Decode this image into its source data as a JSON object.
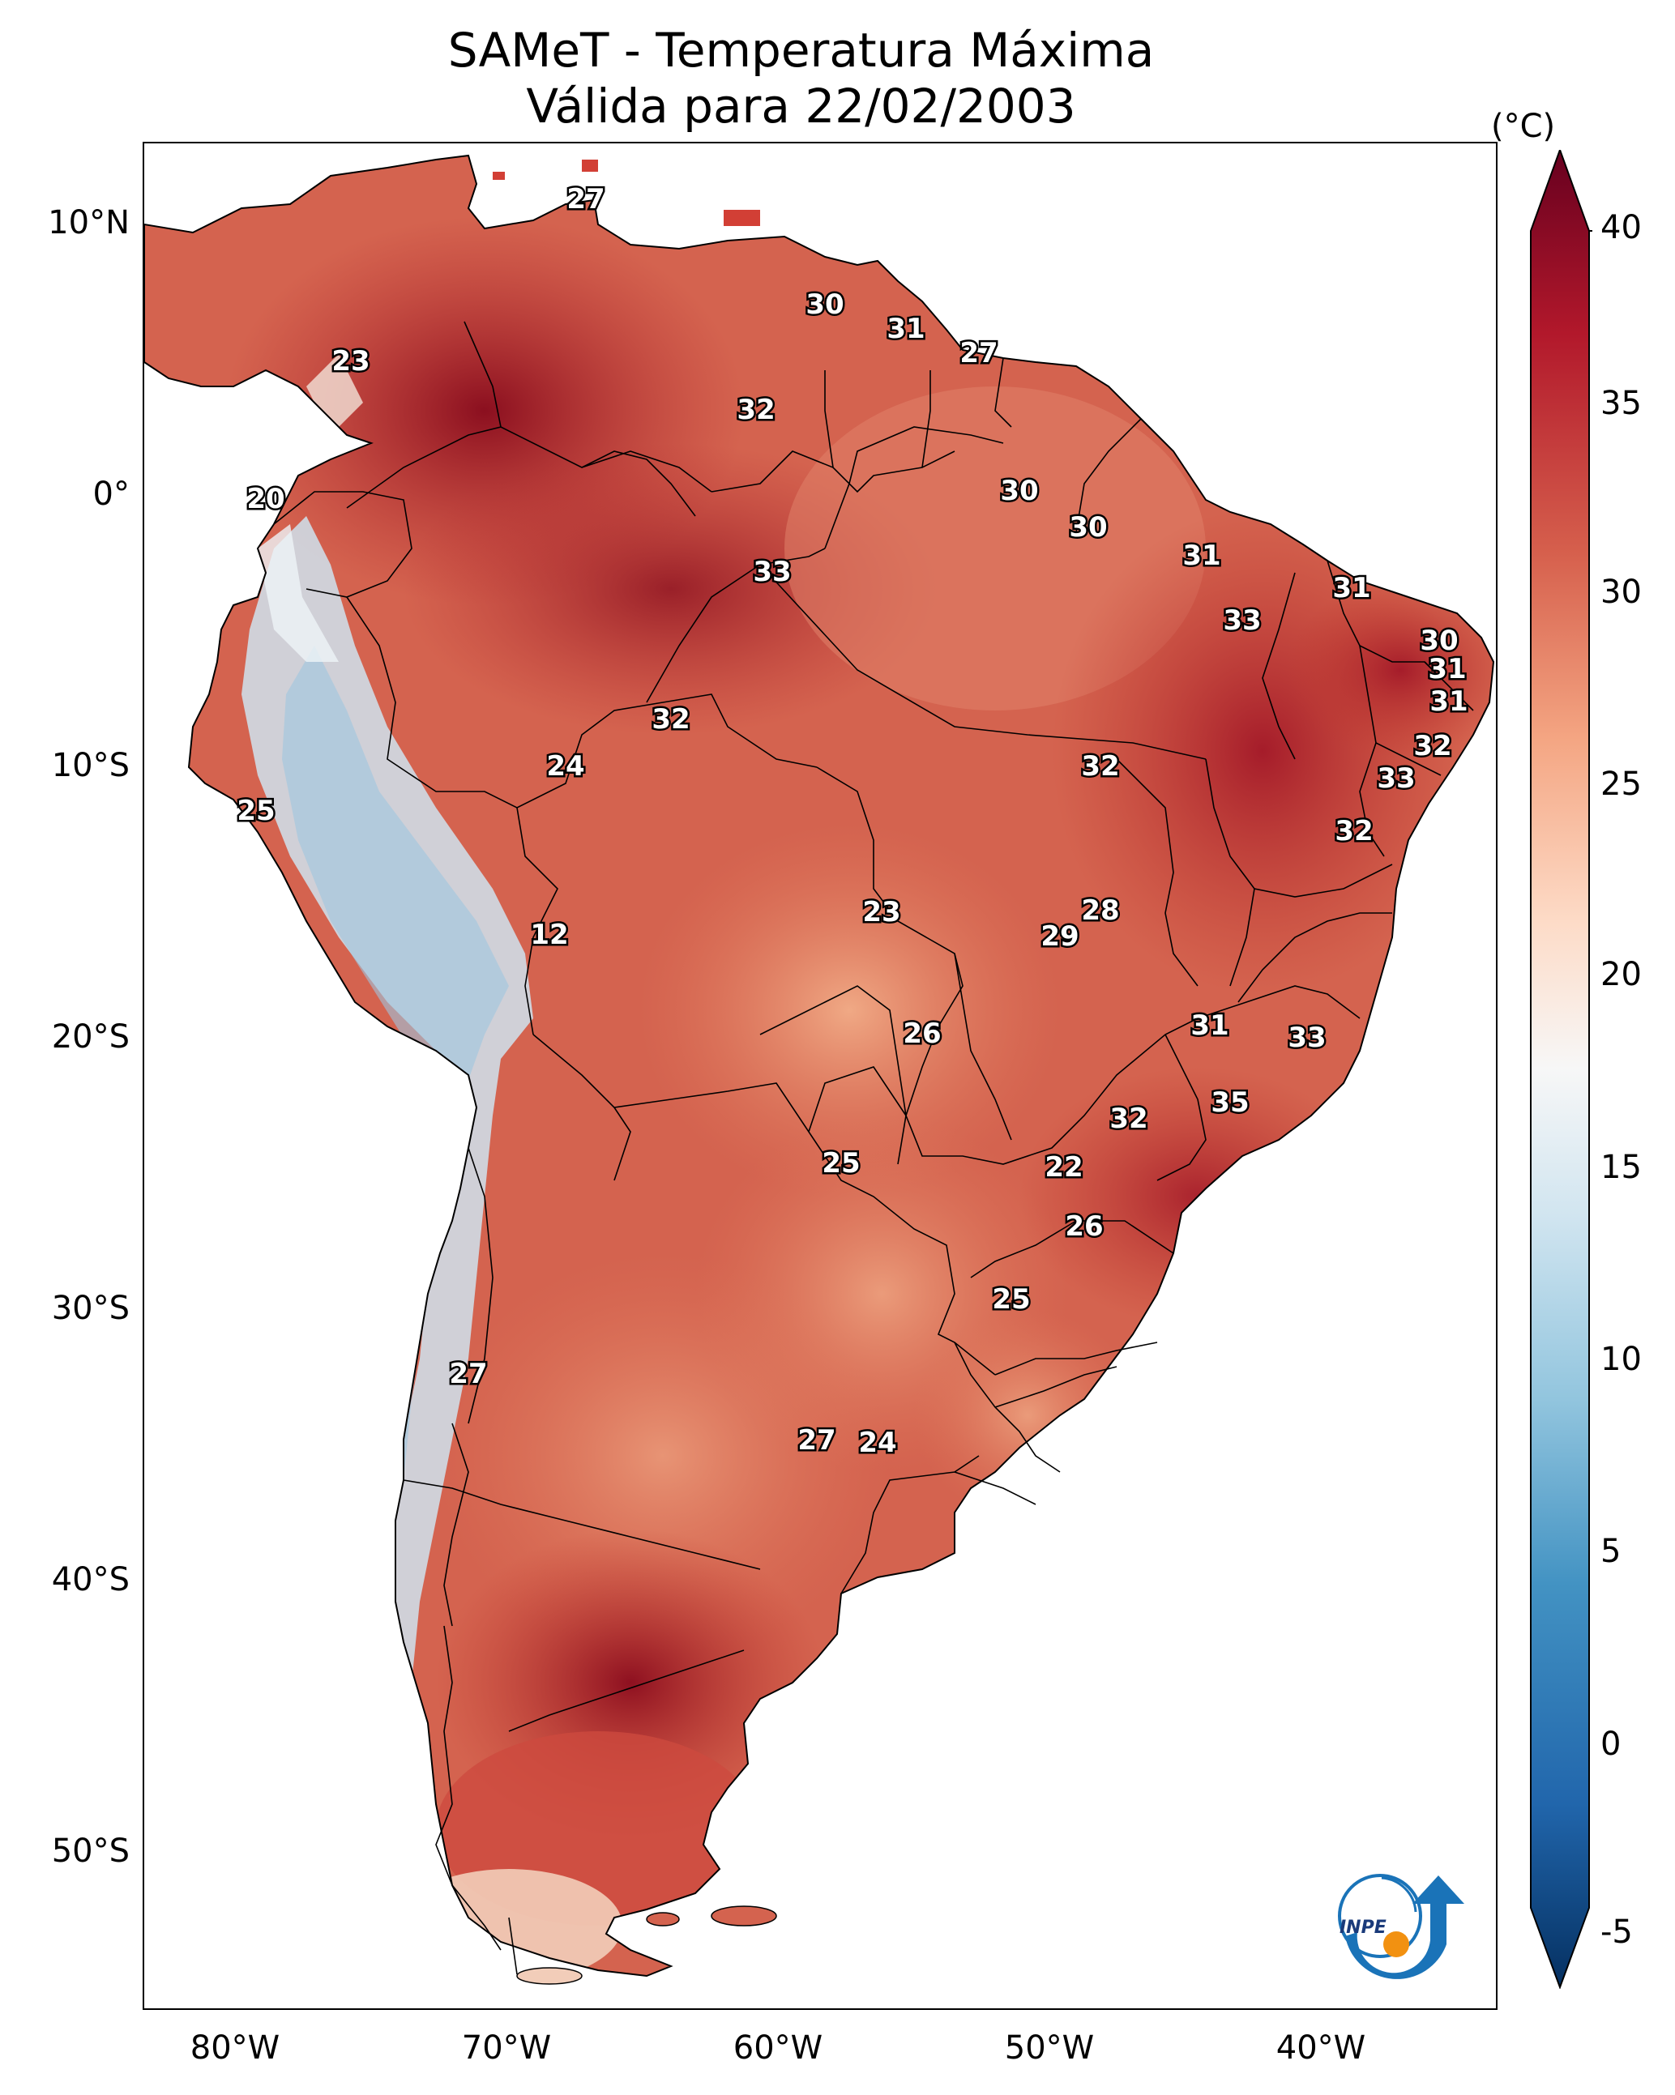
{
  "title": {
    "line1": "SAMeT - Temperatura Máxima",
    "line2": "Válida para 22/02/2003"
  },
  "colorbar": {
    "unit": "(°C)",
    "ticks": [
      "40",
      "35",
      "30",
      "25",
      "20",
      "15",
      "10",
      "5",
      "0",
      "-5"
    ],
    "colors": [
      "#053061",
      "#2166ac",
      "#4393c3",
      "#92c5de",
      "#d1e5f0",
      "#f7f7f7",
      "#fddbc7",
      "#f4a582",
      "#d6604d",
      "#b2182b",
      "#67001f"
    ]
  },
  "axes": {
    "lat_labels": [
      "10°N",
      "0°",
      "10°S",
      "20°S",
      "30°S",
      "40°S",
      "50°S"
    ],
    "lon_labels": [
      "80°W",
      "70°W",
      "60°W",
      "50°W",
      "40°W"
    ]
  },
  "contour_labels": [
    "27",
    "30",
    "31",
    "27",
    "23",
    "32",
    "20",
    "30",
    "30",
    "33",
    "31",
    "31",
    "33",
    "30",
    "31",
    "31",
    "32",
    "32",
    "24",
    "32",
    "33",
    "25",
    "32",
    "12",
    "23",
    "28",
    "29",
    "26",
    "31",
    "33",
    "35",
    "32",
    "25",
    "22",
    "26",
    "25",
    "27",
    "27",
    "24"
  ],
  "logo": {
    "text": "INPE"
  }
}
